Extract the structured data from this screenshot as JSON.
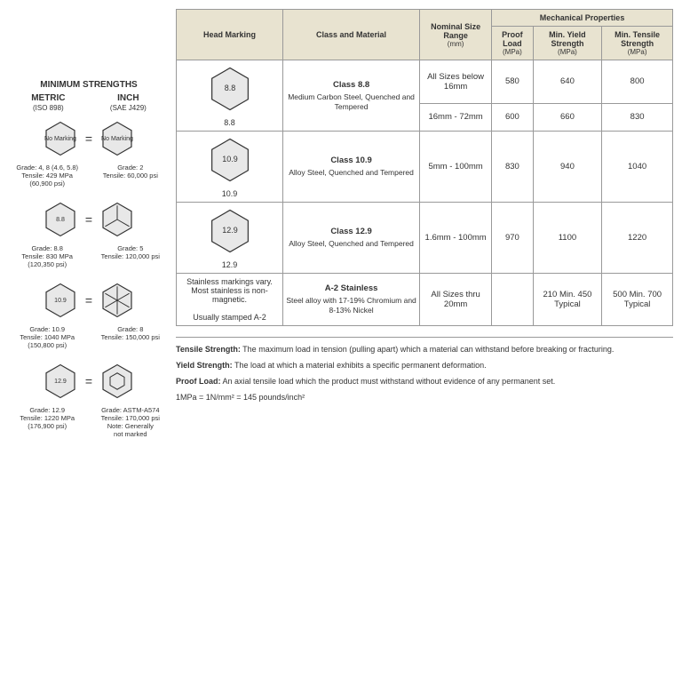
{
  "left": {
    "title": "MINIMUM STRENGTHS",
    "metric_hdr": "METRIC",
    "metric_sub": "(ISO 898)",
    "inch_hdr": "INCH",
    "inch_sub": "(SAE J429)",
    "rows": [
      {
        "metric_mark": "No\nMarking",
        "inch_mark": "No\nMarking",
        "metric_label": "Grade: 4, 8 (4.6, 5.8)\nTensile: 429 MPa\n(60,900 psi)",
        "inch_label": "Grade: 2\nTensile: 60,000 psi"
      },
      {
        "metric_mark": "8.8",
        "inch_mark": "",
        "metric_label": "Grade: 8.8\nTensile: 830 MPa\n(120,350 psi)",
        "inch_label": "Grade: 5\nTensile: 120,000 psi",
        "inch_radial": 3
      },
      {
        "metric_mark": "10.9",
        "inch_mark": "",
        "metric_label": "Grade: 10.9\nTensile: 1040 MPa\n(150,800 psi)",
        "inch_label": "Grade: 8\nTensile: 150,000 psi",
        "inch_radial": 6
      },
      {
        "metric_mark": "12.9",
        "inch_mark": "",
        "metric_label": "Grade: 12.9\nTensile: 1220 MPa\n(176,900 psi)",
        "inch_label": "Grade: ASTM-A574\nTensile: 170,000 psi\nNote: Generally\nnot marked",
        "inch_hex_small": true
      }
    ]
  },
  "table": {
    "headers": {
      "head_marking": "Head Marking",
      "class_material": "Class and Material",
      "size_range": "Nominal Size Range",
      "size_range_sub": "(mm)",
      "mech_props": "Mechanical Properties",
      "proof": "Proof Load",
      "proof_sub": "(MPa)",
      "yield": "Min. Yield Strength",
      "yield_sub": "(MPa)",
      "tensile": "Min. Tensile Strength",
      "tensile_sub": "(MPa)"
    },
    "rows": [
      {
        "mark": "8.8",
        "mark_caption": "8.8",
        "class": "Class 8.8",
        "desc": "Medium Carbon Steel, Quenched and Tempered",
        "subrows": [
          {
            "size": "All Sizes below 16mm",
            "proof": "580",
            "yield": "640",
            "tensile": "800"
          },
          {
            "size": "16mm - 72mm",
            "proof": "600",
            "yield": "660",
            "tensile": "830"
          }
        ]
      },
      {
        "mark": "10.9",
        "mark_caption": "10.9",
        "class": "Class 10.9",
        "desc": "Alloy Steel, Quenched and Tempered",
        "subrows": [
          {
            "size": "5mm - 100mm",
            "proof": "830",
            "yield": "940",
            "tensile": "1040"
          }
        ]
      },
      {
        "mark": "12.9",
        "mark_caption": "12.9",
        "class": "Class 12.9",
        "desc": "Alloy Steel, Quenched and Tempered",
        "subrows": [
          {
            "size": "1.6mm - 100mm",
            "proof": "970",
            "yield": "1100",
            "tensile": "1220"
          }
        ]
      },
      {
        "mark_text": "Stainless markings vary. Most stainless is non-magnetic.\n\nUsually stamped A-2",
        "class": "A-2 Stainless",
        "desc": "Steel alloy with 17-19% Chromium and 8-13% Nickel",
        "subrows": [
          {
            "size": "All Sizes thru 20mm",
            "proof": "",
            "yield": "210 Min. 450 Typical",
            "tensile": "500 Min. 700 Typical"
          }
        ]
      }
    ]
  },
  "definitions": {
    "tensile_label": "Tensile Strength:",
    "tensile": " The maximum load in tension (pulling apart) which a material can withstand before breaking or fracturing.",
    "yield_label": "Yield Strength:",
    "yield": " The load at which a material exhibits a specific permanent deformation.",
    "proof_label": "Proof Load:",
    "proof": " An axial tensile load which the product must withstand without evidence of any permanent set.",
    "conversion": "1MPa = 1N/mm² = 145 pounds/inch²"
  },
  "colors": {
    "hex_fill": "#e8e8e8",
    "hex_stroke": "#333"
  }
}
